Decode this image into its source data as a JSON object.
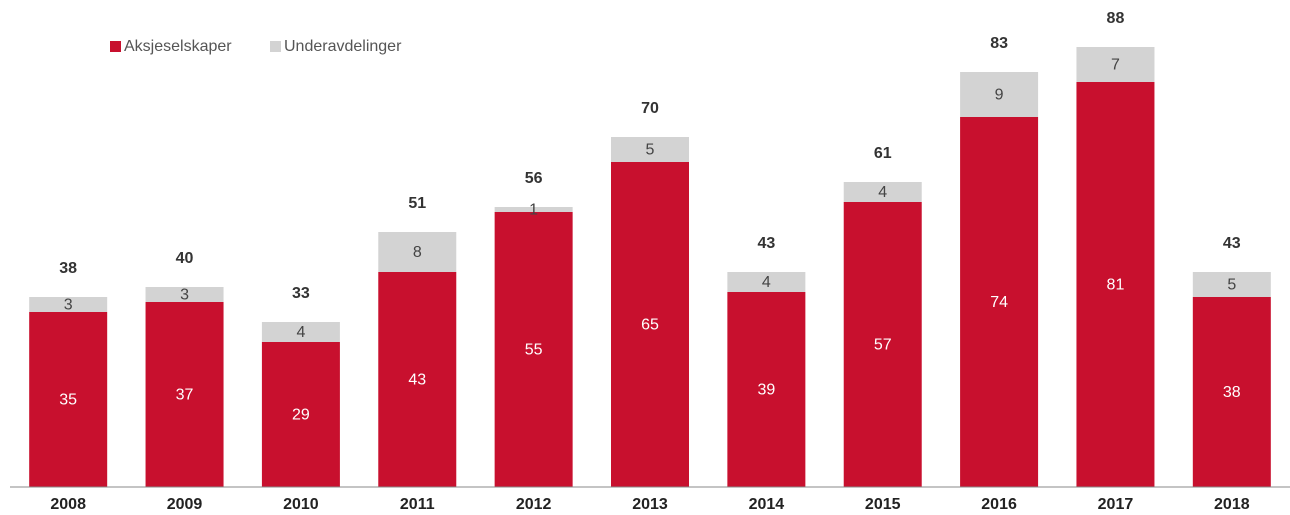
{
  "chart_data": {
    "type": "stacked_bar",
    "categories": [
      "2008",
      "2009",
      "2010",
      "2011",
      "2012",
      "2013",
      "2014",
      "2015",
      "2016",
      "2017",
      "2018"
    ],
    "series": [
      {
        "name": "Aksjeselskaper",
        "color": "#c8102e",
        "values": [
          35,
          37,
          29,
          43,
          55,
          65,
          39,
          57,
          74,
          81,
          38
        ]
      },
      {
        "name": "Underavdelinger",
        "color": "#d3d3d3",
        "values": [
          3,
          3,
          4,
          8,
          1,
          5,
          4,
          4,
          9,
          7,
          5
        ]
      }
    ],
    "totals": [
      38,
      40,
      33,
      51,
      56,
      70,
      43,
      61,
      83,
      88,
      43
    ],
    "ylim": [
      0,
      90
    ],
    "legend": "top-left"
  }
}
